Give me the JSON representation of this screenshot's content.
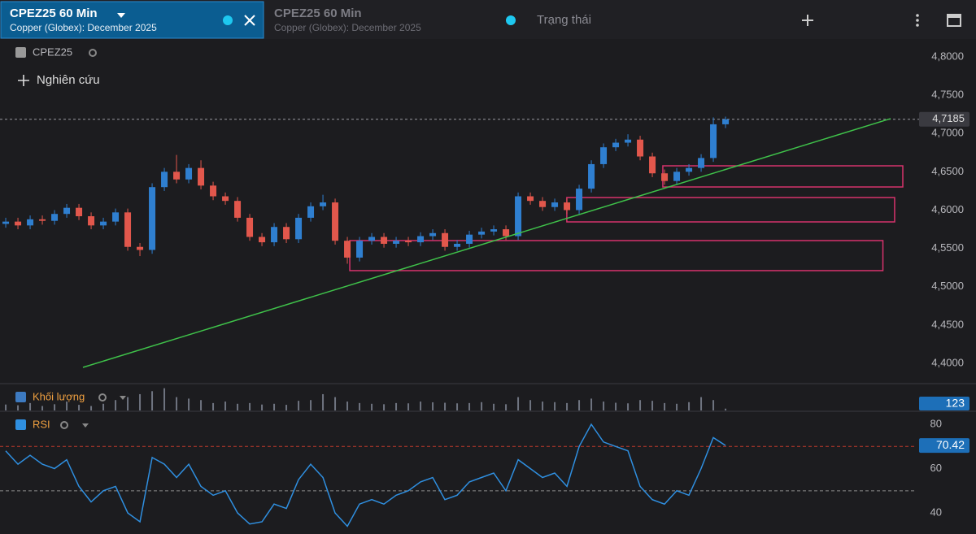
{
  "header": {
    "tabs": [
      {
        "title": "CPEZ25 60 Min",
        "subtitle": "Copper (Globex): December 2025"
      },
      {
        "title": "CPEZ25 60 Min",
        "subtitle": "Copper (Globex): December 2025"
      }
    ],
    "status": "Trạng thái"
  },
  "toolbar": {
    "studies": "Nghiên cứu"
  },
  "chart_data": [
    {
      "type": "candlestick",
      "title": "CPEZ25",
      "up_color": "#2f7fd0",
      "down_color": "#e2574c",
      "open": [
        4.582,
        4.585,
        4.58,
        4.588,
        4.586,
        4.595,
        4.603,
        4.592,
        4.58,
        4.585,
        4.597,
        4.552,
        4.548,
        4.63,
        4.65,
        4.64,
        4.655,
        4.632,
        4.618,
        4.612,
        4.59,
        4.565,
        4.558,
        4.578,
        4.562,
        4.59,
        4.605,
        4.61,
        4.56,
        4.538,
        4.56,
        4.565,
        4.556,
        4.56,
        4.558,
        4.566,
        4.57,
        4.552,
        4.556,
        4.568,
        4.572,
        4.575,
        4.566,
        4.618,
        4.612,
        4.604,
        4.61,
        4.6,
        4.628,
        4.66,
        4.682,
        4.688,
        4.692,
        4.67,
        4.648,
        4.638,
        4.65,
        4.655,
        4.668,
        4.712
      ],
      "high": [
        4.59,
        4.59,
        4.593,
        4.593,
        4.6,
        4.608,
        4.608,
        4.597,
        4.59,
        4.602,
        4.602,
        4.557,
        4.635,
        4.655,
        4.672,
        4.66,
        4.665,
        4.637,
        4.623,
        4.617,
        4.595,
        4.57,
        4.583,
        4.583,
        4.595,
        4.61,
        4.62,
        4.615,
        4.565,
        4.565,
        4.57,
        4.57,
        4.565,
        4.565,
        4.571,
        4.575,
        4.575,
        4.561,
        4.573,
        4.577,
        4.58,
        4.58,
        4.623,
        4.623,
        4.617,
        4.615,
        4.615,
        4.633,
        4.665,
        4.687,
        4.693,
        4.699,
        4.697,
        4.675,
        4.653,
        4.655,
        4.66,
        4.673,
        4.721,
        4.722
      ],
      "low": [
        4.577,
        4.575,
        4.575,
        4.581,
        4.581,
        4.59,
        4.587,
        4.575,
        4.575,
        4.58,
        4.547,
        4.54,
        4.543,
        4.625,
        4.635,
        4.635,
        4.627,
        4.613,
        4.607,
        4.585,
        4.56,
        4.553,
        4.553,
        4.557,
        4.557,
        4.585,
        4.6,
        4.555,
        4.53,
        4.533,
        4.555,
        4.551,
        4.551,
        4.553,
        4.553,
        4.561,
        4.547,
        4.547,
        4.551,
        4.563,
        4.567,
        4.561,
        4.561,
        4.607,
        4.599,
        4.599,
        4.595,
        4.595,
        4.623,
        4.655,
        4.677,
        4.683,
        4.665,
        4.643,
        4.633,
        4.633,
        4.645,
        4.65,
        4.663,
        4.707
      ],
      "close": [
        4.585,
        4.58,
        4.588,
        4.586,
        4.595,
        4.603,
        4.592,
        4.58,
        4.585,
        4.597,
        4.552,
        4.548,
        4.63,
        4.65,
        4.64,
        4.655,
        4.632,
        4.618,
        4.612,
        4.59,
        4.565,
        4.558,
        4.578,
        4.562,
        4.59,
        4.605,
        4.61,
        4.56,
        4.538,
        4.56,
        4.565,
        4.556,
        4.56,
        4.558,
        4.566,
        4.57,
        4.552,
        4.556,
        4.568,
        4.572,
        4.575,
        4.566,
        4.618,
        4.612,
        4.604,
        4.61,
        4.6,
        4.628,
        4.66,
        4.682,
        4.688,
        4.692,
        4.67,
        4.648,
        4.638,
        4.65,
        4.655,
        4.668,
        4.712,
        4.7185
      ],
      "last_price": {
        "value": 4.7185,
        "label": "4,7185"
      },
      "xlim": [
        -0.47,
        74.53
      ],
      "ylim": [
        4.3735,
        4.8233
      ],
      "yticks": [
        {
          "value": 4.8,
          "label": "4,8000"
        },
        {
          "value": 4.75,
          "label": "4,7500"
        },
        {
          "value": 4.7,
          "label": "4,7000"
        },
        {
          "value": 4.65,
          "label": "4,6500"
        },
        {
          "value": 4.6,
          "label": "4,6000"
        },
        {
          "value": 4.55,
          "label": "4,5500"
        },
        {
          "value": 4.5,
          "label": "4,5000"
        },
        {
          "value": 4.45,
          "label": "4,4500"
        },
        {
          "value": 4.4,
          "label": "4,4000"
        }
      ],
      "trendline": {
        "color": "#3fc24a",
        "x": [
          6.33,
          72.53
        ],
        "y": [
          4.3947,
          4.7194
        ]
      },
      "zones": [
        {
          "color": "#d6336c",
          "x": [
            53.86,
            73.53
          ],
          "y": [
            4.6578,
            4.6302
          ]
        },
        {
          "color": "#d6336c",
          "x": [
            45.99,
            72.86
          ],
          "y": [
            4.6164,
            4.5846
          ]
        },
        {
          "color": "#d6336c",
          "x": [
            28.2,
            71.9
          ],
          "y": [
            4.5602,
            4.521
          ]
        }
      ]
    },
    {
      "type": "bar",
      "title": "Khối lượng",
      "color": "#6f7480",
      "xlim": [
        -0.47,
        74.53
      ],
      "ylim": [
        0,
        1700
      ],
      "values": [
        400,
        350,
        500,
        300,
        420,
        600,
        380,
        300,
        450,
        700,
        900,
        1100,
        1300,
        1500,
        900,
        800,
        700,
        500,
        600,
        450,
        500,
        400,
        450,
        380,
        650,
        700,
        1100,
        900,
        600,
        500,
        450,
        420,
        500,
        480,
        600,
        550,
        520,
        480,
        500,
        560,
        450,
        420,
        900,
        700,
        600,
        560,
        500,
        700,
        800,
        600,
        520,
        480,
        700,
        650,
        500,
        450,
        560,
        900,
        700,
        123
      ]
    },
    {
      "type": "line",
      "title": "RSI",
      "color": "#2f8fe0",
      "xlim": [
        -0.47,
        74.53
      ],
      "ylim": [
        30.5,
        85.5
      ],
      "yticks": [
        80,
        60,
        40
      ],
      "levels": [
        70,
        50
      ],
      "level_colors": [
        "#c0392b",
        "#8a8a8a"
      ],
      "values": [
        68,
        62,
        66,
        62,
        60,
        64,
        52,
        45,
        50,
        52,
        40,
        36,
        65,
        62,
        56,
        62,
        52,
        48,
        50,
        40,
        35,
        36,
        44,
        42,
        55,
        62,
        56,
        40,
        34,
        44,
        46,
        44,
        48,
        50,
        54,
        56,
        46,
        48,
        54,
        56,
        58,
        50,
        64,
        60,
        56,
        58,
        52,
        70,
        80,
        72,
        70,
        68,
        52,
        46,
        44,
        50,
        48,
        60,
        74,
        70.42
      ]
    }
  ]
}
